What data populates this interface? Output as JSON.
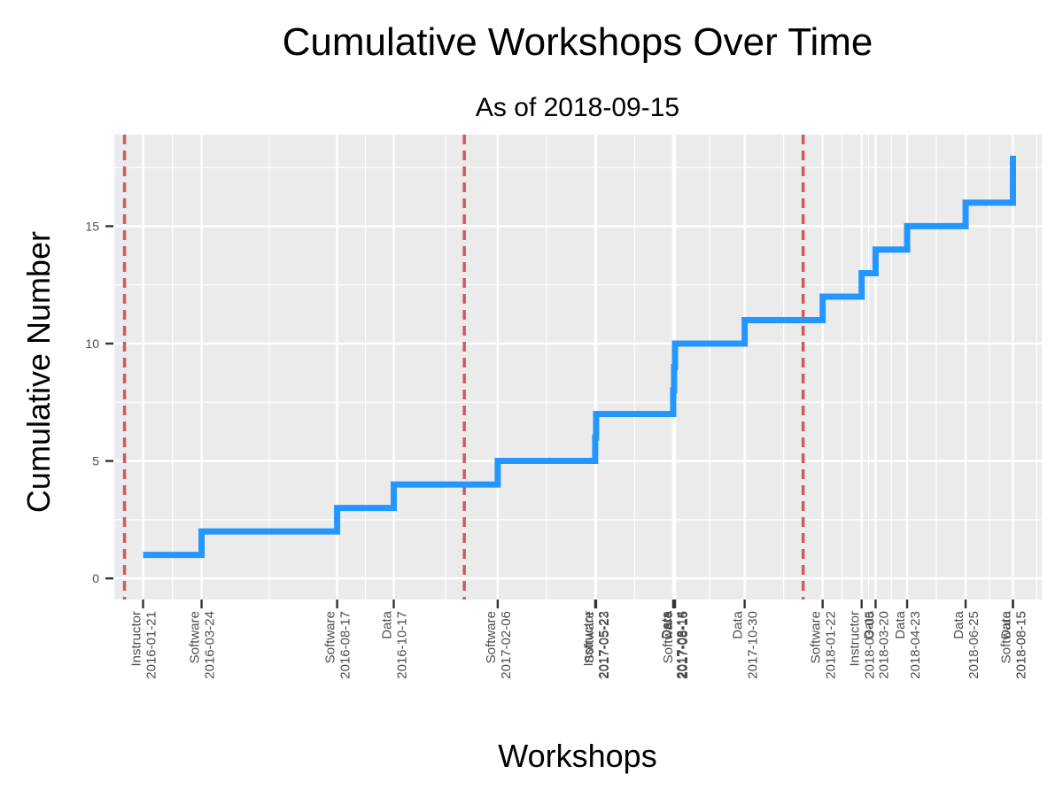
{
  "chart_data": {
    "type": "line",
    "step": true,
    "title": "Cumulative Workshops Over Time",
    "subtitle": "As of 2018-09-15",
    "xlabel": "Workshops",
    "ylabel": "Cumulative Number",
    "x_axis_type": "date",
    "xlim": [
      "2015-12-20",
      "2018-09-15"
    ],
    "ylim": [
      -0.9,
      18.9
    ],
    "yticks": [
      0,
      5,
      10,
      15
    ],
    "grid": true,
    "legend": "none",
    "colors": {
      "line": "#2396ff",
      "vline": "#cd5c5c",
      "panel": "#ebebeb",
      "grid": "#ffffff"
    },
    "workshops": [
      {
        "date": "2016-01-21",
        "type": "Instructor"
      },
      {
        "date": "2016-03-24",
        "type": "Software"
      },
      {
        "date": "2016-08-17",
        "type": "Software"
      },
      {
        "date": "2016-10-17",
        "type": "Data"
      },
      {
        "date": "2017-02-06",
        "type": "Software"
      },
      {
        "date": "2017-05-22",
        "type": "Instructor"
      },
      {
        "date": "2017-05-23",
        "type": "Software"
      },
      {
        "date": "2017-08-14",
        "type": "Data"
      },
      {
        "date": "2017-08-15",
        "type": "Data"
      },
      {
        "date": "2017-08-16",
        "type": "Software"
      },
      {
        "date": "2017-10-30",
        "type": "Data"
      },
      {
        "date": "2018-01-22",
        "type": "Software"
      },
      {
        "date": "2018-03-05",
        "type": "Instructor"
      },
      {
        "date": "2018-03-20",
        "type": "Data"
      },
      {
        "date": "2018-04-23",
        "type": "Data"
      },
      {
        "date": "2018-06-25",
        "type": "Data"
      },
      {
        "date": "2018-08-15",
        "type": "Software"
      },
      {
        "date": "2018-08-15",
        "type": "Data"
      }
    ],
    "series": [
      {
        "x": [
          "2016-01-21",
          "2016-03-24",
          "2016-08-17",
          "2016-10-17",
          "2017-02-06",
          "2017-05-22",
          "2017-05-23",
          "2017-08-14",
          "2017-08-15",
          "2017-08-16",
          "2017-10-30",
          "2018-01-22",
          "2018-03-05",
          "2018-03-20",
          "2018-04-23",
          "2018-06-25",
          "2018-08-15",
          "2018-08-15"
        ],
        "y": [
          1,
          2,
          3,
          4,
          5,
          6,
          7,
          8,
          9,
          10,
          11,
          12,
          13,
          14,
          15,
          16,
          17,
          18
        ]
      }
    ],
    "vlines": [
      "2016-01-01",
      "2017-01-01",
      "2018-01-01"
    ]
  }
}
